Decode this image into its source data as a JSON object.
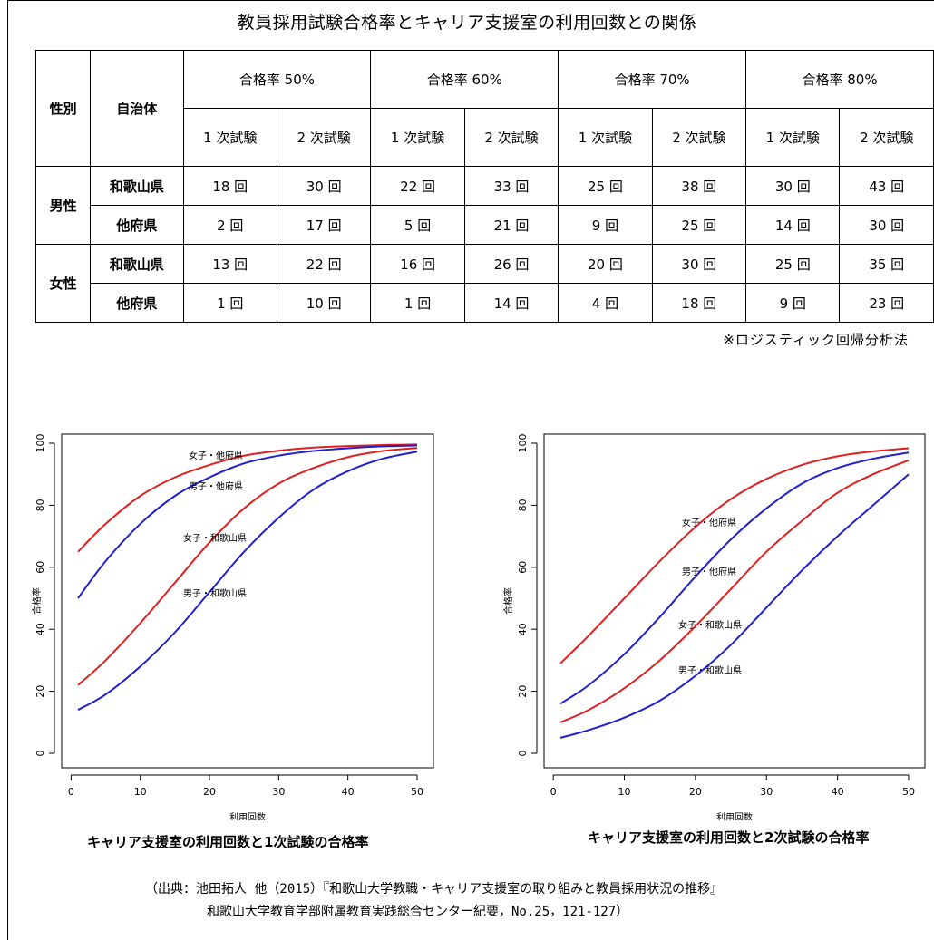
{
  "title": "教員採用試験合格率とキャリア支援室の利用回数との関係",
  "table": {
    "head_gender": "性別",
    "head_region": "自治体",
    "rate_groups": [
      "合格率 50%",
      "合格率 60%",
      "合格率 70%",
      "合格率 80%"
    ],
    "sub_heads": [
      "1 次試験",
      "2 次試験",
      "1 次試験",
      "2 次試験",
      "1 次試験",
      "2 次試験",
      "1 次試験",
      "2 次試験"
    ],
    "rows": [
      {
        "gender": "男性",
        "region": "和歌山県",
        "values": [
          "18 回",
          "30 回",
          "22 回",
          "33 回",
          "25 回",
          "38 回",
          "30 回",
          "43 回"
        ]
      },
      {
        "gender": "",
        "region": "他府県",
        "values": [
          "2 回",
          "17 回",
          "5 回",
          "21 回",
          "9 回",
          "25 回",
          "14 回",
          "30 回"
        ]
      },
      {
        "gender": "女性",
        "region": "和歌山県",
        "values": [
          "13 回",
          "22 回",
          "16 回",
          "26 回",
          "20 回",
          "30 回",
          "25 回",
          "35 回"
        ]
      },
      {
        "gender": "",
        "region": "他府県",
        "values": [
          "1 回",
          "10 回",
          "1 回",
          "14 回",
          "4 回",
          "18 回",
          "9 回",
          "23 回"
        ]
      }
    ],
    "method_note": "※ロジスティック回帰分析法"
  },
  "chart_data": [
    {
      "type": "line",
      "title": "キャリア支援室の利用回数と1次試験の合格率",
      "xlabel": "利用回数",
      "ylabel": "合格率",
      "xlim": [
        1,
        50
      ],
      "ylim": [
        0,
        100
      ],
      "xticks": [
        0,
        10,
        20,
        30,
        40,
        50
      ],
      "yticks": [
        0,
        20,
        40,
        60,
        80,
        100
      ],
      "grid": false,
      "series": [
        {
          "name": "女子・他府県",
          "color": "#e02020",
          "x": [
            1,
            5,
            10,
            15,
            20,
            25,
            30,
            35,
            40,
            45,
            50
          ],
          "y": [
            65,
            74,
            83,
            89,
            93,
            96,
            97.6,
            98.6,
            99.1,
            99.4,
            99.6
          ]
        },
        {
          "name": "男子・他府県",
          "color": "#2020d0",
          "x": [
            1,
            5,
            10,
            15,
            20,
            25,
            30,
            35,
            40,
            45,
            50
          ],
          "y": [
            50,
            62,
            74,
            83,
            89,
            93.5,
            96,
            97.5,
            98.4,
            99,
            99.3
          ]
        },
        {
          "name": "女子・和歌山県",
          "color": "#e02020",
          "x": [
            1,
            5,
            10,
            15,
            20,
            25,
            30,
            35,
            40,
            45,
            50
          ],
          "y": [
            22,
            30,
            42,
            55,
            68,
            79,
            87,
            92,
            95.5,
            97.5,
            98.5
          ]
        },
        {
          "name": "男子・和歌山県",
          "color": "#2020d0",
          "x": [
            1,
            5,
            10,
            15,
            20,
            25,
            30,
            35,
            40,
            45,
            50
          ],
          "y": [
            14,
            19,
            28,
            39,
            52,
            65,
            76,
            85,
            91,
            95,
            97.3
          ]
        }
      ]
    },
    {
      "type": "line",
      "title": "キャリア支援室の利用回数と2次試験の合格率",
      "xlabel": "利用回数",
      "ylabel": "合格率",
      "xlim": [
        1,
        50
      ],
      "ylim": [
        0,
        100
      ],
      "xticks": [
        0,
        10,
        20,
        30,
        40,
        50
      ],
      "yticks": [
        0,
        20,
        40,
        60,
        80,
        100
      ],
      "grid": false,
      "series": [
        {
          "name": "女子・他府県",
          "color": "#e02020",
          "x": [
            1,
            5,
            10,
            15,
            20,
            25,
            30,
            35,
            40,
            45,
            50
          ],
          "y": [
            29,
            38,
            50,
            62,
            73,
            82,
            88.5,
            93,
            95.8,
            97.4,
            98.4
          ]
        },
        {
          "name": "男子・他府県",
          "color": "#2020d0",
          "x": [
            1,
            5,
            10,
            15,
            20,
            25,
            30,
            35,
            40,
            45,
            50
          ],
          "y": [
            16,
            22,
            32,
            44,
            57,
            69,
            79,
            87,
            92,
            95,
            97
          ]
        },
        {
          "name": "女子・和歌山県",
          "color": "#e02020",
          "x": [
            1,
            5,
            10,
            15,
            20,
            25,
            30,
            35,
            40,
            45,
            50
          ],
          "y": [
            10,
            14,
            21,
            30,
            41,
            53,
            65,
            75,
            84,
            90,
            94.5
          ]
        },
        {
          "name": "男子・和歌山県",
          "color": "#2020d0",
          "x": [
            1,
            5,
            10,
            15,
            20,
            25,
            30,
            35,
            40,
            45,
            50
          ],
          "y": [
            5,
            7.5,
            11.5,
            17,
            25,
            35,
            47,
            59,
            70,
            80,
            90
          ]
        }
      ]
    }
  ],
  "citation": {
    "line1": "（出典：池田拓人 他（2015）『和歌山大学教職・キャリア支援室の取り組みと教員採用状況の推移』",
    "line2": "和歌山大学教育学部附属教育実践総合センター紀要，No.25，121-127）"
  }
}
